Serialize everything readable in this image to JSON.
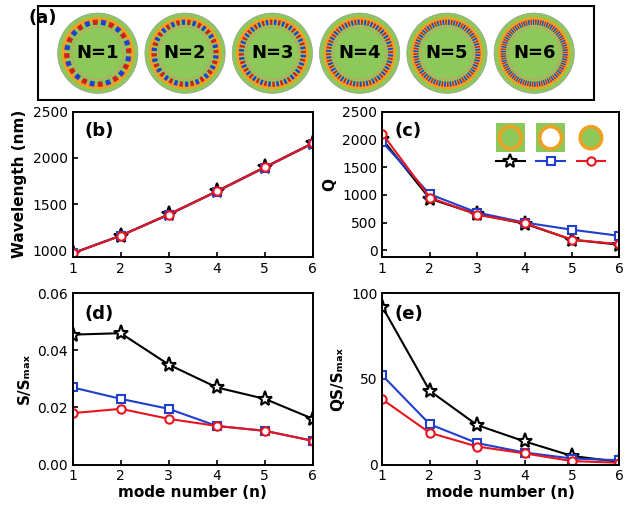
{
  "panel_a": {
    "label": "(a)",
    "items": [
      "N=1",
      "N=2",
      "N=3",
      "N=4",
      "N=5",
      "N=6"
    ]
  },
  "chart_data": [
    {
      "type": "line",
      "title": "(b)",
      "y_label": "Wavelength (nm)",
      "x": [
        1,
        2,
        3,
        4,
        5,
        6
      ],
      "xlim": [
        1,
        6
      ],
      "xticks": [
        1,
        2,
        3,
        4,
        5,
        6
      ],
      "ylim": [
        930,
        2500
      ],
      "yticks": [
        1000,
        1500,
        2000,
        2500
      ],
      "series": [
        {
          "color": "#000000",
          "marker": "star",
          "values": [
            970,
            1160,
            1390,
            1640,
            1900,
            2160
          ]
        },
        {
          "color": "#1f3fcc",
          "marker": "square",
          "values": [
            970,
            1160,
            1385,
            1635,
            1895,
            2155
          ]
        },
        {
          "color": "#e8141e",
          "marker": "circle",
          "values": [
            968,
            1158,
            1388,
            1638,
            1898,
            2158
          ]
        }
      ]
    },
    {
      "type": "line",
      "title": "(c)",
      "y_label": "Q",
      "x": [
        1,
        2,
        3,
        4,
        5,
        6
      ],
      "xlim": [
        1,
        6
      ],
      "xticks": [
        1,
        2,
        3,
        4,
        5,
        6
      ],
      "ylim": [
        -120,
        2500
      ],
      "yticks": [
        0,
        500,
        1000,
        1500,
        2000,
        2500
      ],
      "series": [
        {
          "color": "#000000",
          "marker": "star",
          "values": [
            2000,
            930,
            650,
            480,
            190,
            100
          ]
        },
        {
          "color": "#1f3fcc",
          "marker": "square",
          "values": [
            1950,
            1010,
            680,
            500,
            370,
            260
          ]
        },
        {
          "color": "#e8141e",
          "marker": "circle",
          "values": [
            2100,
            950,
            640,
            490,
            190,
            110
          ]
        }
      ]
    },
    {
      "type": "line",
      "title": "(d)",
      "x_label": "mode number (n)",
      "y_label": "S/Sₘₐₓ",
      "x": [
        1,
        2,
        3,
        4,
        5,
        6
      ],
      "xlim": [
        1,
        6
      ],
      "xticks": [
        1,
        2,
        3,
        4,
        5,
        6
      ],
      "ylim": [
        0,
        0.06
      ],
      "yticks": [
        {
          "value": 0,
          "label": "0.00"
        },
        {
          "value": 0.02,
          "label": "0.02"
        },
        {
          "value": 0.04,
          "label": "0.04"
        },
        {
          "value": 0.06,
          "label": "0.06"
        }
      ],
      "series": [
        {
          "color": "#000000",
          "marker": "star",
          "values": [
            0.0455,
            0.046,
            0.035,
            0.027,
            0.023,
            0.016
          ]
        },
        {
          "color": "#1f3fcc",
          "marker": "square",
          "values": [
            0.027,
            0.023,
            0.0195,
            0.0135,
            0.0118,
            0.0083
          ]
        },
        {
          "color": "#e8141e",
          "marker": "circle",
          "values": [
            0.018,
            0.0195,
            0.016,
            0.0135,
            0.0118,
            0.0083
          ]
        }
      ]
    },
    {
      "type": "line",
      "title": "(e)",
      "x_label": "mode number (n)",
      "y_label": "QS/Sₘₐₓ",
      "x": [
        1,
        2,
        3,
        4,
        5,
        6
      ],
      "xlim": [
        1,
        6
      ],
      "xticks": [
        1,
        2,
        3,
        4,
        5,
        6
      ],
      "ylim": [
        0,
        100
      ],
      "yticks": [
        0,
        50,
        100
      ],
      "series": [
        {
          "color": "#000000",
          "marker": "star",
          "values": [
            92,
            43,
            23,
            13.5,
            5,
            1.5
          ]
        },
        {
          "color": "#1f3fcc",
          "marker": "square",
          "values": [
            52,
            23.5,
            12.5,
            7,
            3.5,
            2.5
          ]
        },
        {
          "color": "#e8141e",
          "marker": "circle",
          "values": [
            38,
            18.5,
            10.5,
            6.5,
            2,
            1
          ]
        }
      ]
    }
  ]
}
